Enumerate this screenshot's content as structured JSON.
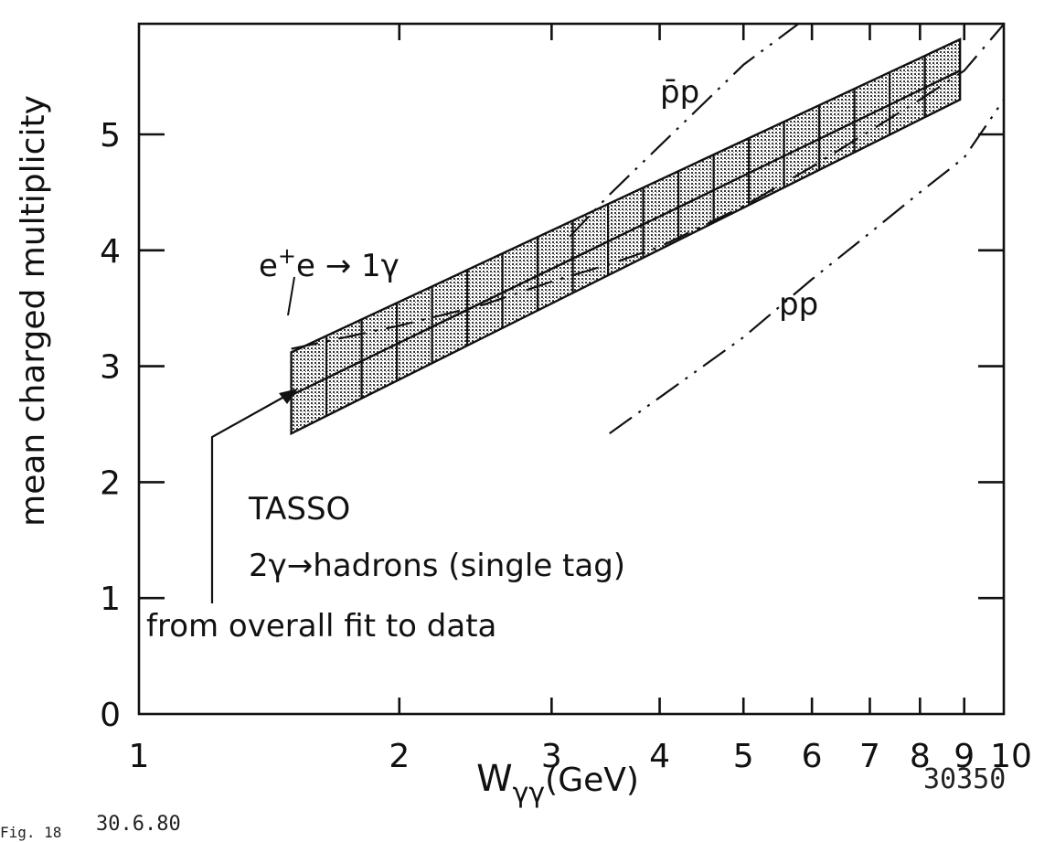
{
  "chart_data": {
    "type": "line",
    "xlabel": "Wγγ(GeV)",
    "ylabel": "mean charged multiplicity",
    "x_scale": "log",
    "xlim": [
      1,
      10
    ],
    "ylim": [
      0,
      6
    ],
    "x_tick_labels": [
      "1",
      "2",
      "3",
      "4",
      "5",
      "6",
      "7",
      "8",
      "9",
      "10"
    ],
    "y_tick_labels": [
      "0",
      "1",
      "2",
      "3",
      "4",
      "5"
    ],
    "x_ticks": [
      1,
      2,
      3,
      4,
      5,
      6,
      7,
      8,
      9,
      10
    ],
    "y_ticks": [
      0,
      1,
      2,
      3,
      4,
      5
    ],
    "grid": false,
    "series": [
      {
        "name": "TASSO 2γ→hadrons (single tag)",
        "style": "shaded-band",
        "x": [
          1.5,
          8.9
        ],
        "y_center": [
          2.75,
          5.55
        ],
        "y_low": [
          2.42,
          5.3
        ],
        "y_high": [
          3.12,
          5.82
        ]
      },
      {
        "name": "e⁺e⁻→1γ",
        "style": "dash-dot",
        "x": [
          1.5,
          2.0,
          2.5,
          3.0,
          3.5,
          4.0,
          5.0,
          6.0,
          7.0,
          8.0,
          9.0,
          10.0
        ],
        "y": [
          3.15,
          3.35,
          3.53,
          3.73,
          3.88,
          4.03,
          4.38,
          4.72,
          5.03,
          5.3,
          5.55,
          5.95
        ]
      },
      {
        "name": "p̄p",
        "style": "dash-dot-dot",
        "x": [
          3.15,
          3.5,
          4.0,
          5.0,
          5.9
        ],
        "y": [
          4.12,
          4.48,
          4.9,
          5.6,
          6.0
        ]
      },
      {
        "name": "pp",
        "style": "dash-dot-dot",
        "x": [
          3.5,
          4.0,
          5.0,
          6.0,
          7.0,
          8.0,
          9.0,
          10.0
        ],
        "y": [
          2.42,
          2.73,
          3.25,
          3.75,
          4.15,
          4.5,
          4.8,
          5.3
        ]
      }
    ],
    "annotations": [
      {
        "id": "ee",
        "main": "e",
        "sup": "+",
        "rest": "e → 1γ"
      },
      {
        "id": "pbar",
        "text": "p̄p"
      },
      {
        "id": "pp",
        "text": "pp"
      },
      {
        "id": "tasso",
        "text": "TASSO"
      },
      {
        "id": "process",
        "text": "2γ→hadrons (single tag)"
      },
      {
        "id": "fit",
        "text": "from overall fit to data"
      }
    ]
  },
  "footer": {
    "fig_label": "Fig. 18",
    "date": "30.6.80",
    "number": "30350"
  }
}
